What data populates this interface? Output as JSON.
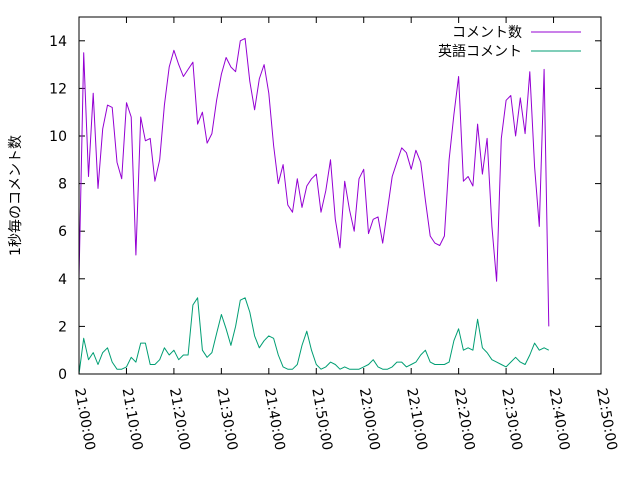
{
  "chart_data": {
    "type": "line",
    "title": "",
    "xlabel": "",
    "ylabel": "1秒毎のコメント数",
    "ylim": [
      0,
      15
    ],
    "xlim": [
      "21:00:00",
      "22:50:00"
    ],
    "yticks": [
      0,
      2,
      4,
      6,
      8,
      10,
      12,
      14
    ],
    "xticks": [
      "21:00:00",
      "21:10:00",
      "21:20:00",
      "21:30:00",
      "21:40:00",
      "21:50:00",
      "22:00:00",
      "22:10:00",
      "22:20:00",
      "22:30:00",
      "22:40:00",
      "22:50:00"
    ],
    "grid": false,
    "legend": "top-right",
    "x_start": "21:00:00",
    "x_step": "1 min",
    "series": [
      {
        "name": "コメント数",
        "color": "#9400d3",
        "values": [
          4.0,
          13.5,
          8.3,
          11.8,
          7.8,
          10.3,
          11.3,
          11.2,
          8.9,
          8.2,
          11.4,
          10.8,
          5.0,
          10.8,
          9.8,
          9.9,
          8.1,
          9.0,
          11.3,
          12.9,
          13.6,
          13.0,
          12.5,
          12.8,
          13.1,
          10.5,
          11.0,
          9.7,
          10.1,
          11.5,
          12.6,
          13.3,
          12.9,
          12.7,
          14.0,
          14.1,
          12.3,
          11.1,
          12.4,
          13.0,
          11.8,
          9.6,
          8.0,
          8.8,
          7.1,
          6.8,
          8.2,
          7.0,
          7.9,
          8.2,
          8.4,
          6.8,
          7.7,
          9.0,
          6.5,
          5.3,
          8.1,
          6.9,
          6.0,
          8.2,
          8.6,
          5.9,
          6.5,
          6.6,
          5.5,
          6.9,
          8.3,
          8.9,
          9.5,
          9.3,
          8.6,
          9.4,
          8.9,
          7.3,
          5.8,
          5.5,
          5.4,
          5.8,
          9.0,
          10.9,
          12.5,
          8.1,
          8.3,
          7.9,
          10.5,
          8.4,
          9.9,
          6.2,
          3.9,
          9.9,
          11.5,
          11.7,
          10.0,
          11.6,
          10.1,
          12.7,
          8.7,
          6.2,
          12.8,
          2.0
        ]
      },
      {
        "name": "英語コメント",
        "color": "#009e73",
        "values": [
          0.0,
          1.5,
          0.6,
          0.9,
          0.4,
          0.9,
          1.1,
          0.5,
          0.2,
          0.2,
          0.3,
          0.7,
          0.5,
          1.3,
          1.3,
          0.4,
          0.4,
          0.6,
          1.1,
          0.8,
          1.0,
          0.6,
          0.8,
          0.8,
          2.9,
          3.2,
          1.0,
          0.7,
          0.9,
          1.7,
          2.5,
          1.9,
          1.2,
          2.0,
          3.1,
          3.2,
          2.6,
          1.6,
          1.1,
          1.4,
          1.6,
          1.5,
          0.8,
          0.3,
          0.2,
          0.2,
          0.4,
          1.2,
          1.8,
          1.0,
          0.4,
          0.2,
          0.3,
          0.5,
          0.4,
          0.2,
          0.3,
          0.2,
          0.2,
          0.2,
          0.3,
          0.4,
          0.6,
          0.3,
          0.2,
          0.2,
          0.3,
          0.5,
          0.5,
          0.3,
          0.4,
          0.5,
          0.8,
          1.0,
          0.5,
          0.4,
          0.4,
          0.4,
          0.5,
          1.4,
          1.9,
          1.0,
          1.1,
          1.0,
          2.3,
          1.1,
          0.9,
          0.6,
          0.5,
          0.4,
          0.3,
          0.5,
          0.7,
          0.5,
          0.4,
          0.8,
          1.3,
          1.0,
          1.1,
          1.0
        ]
      }
    ]
  }
}
